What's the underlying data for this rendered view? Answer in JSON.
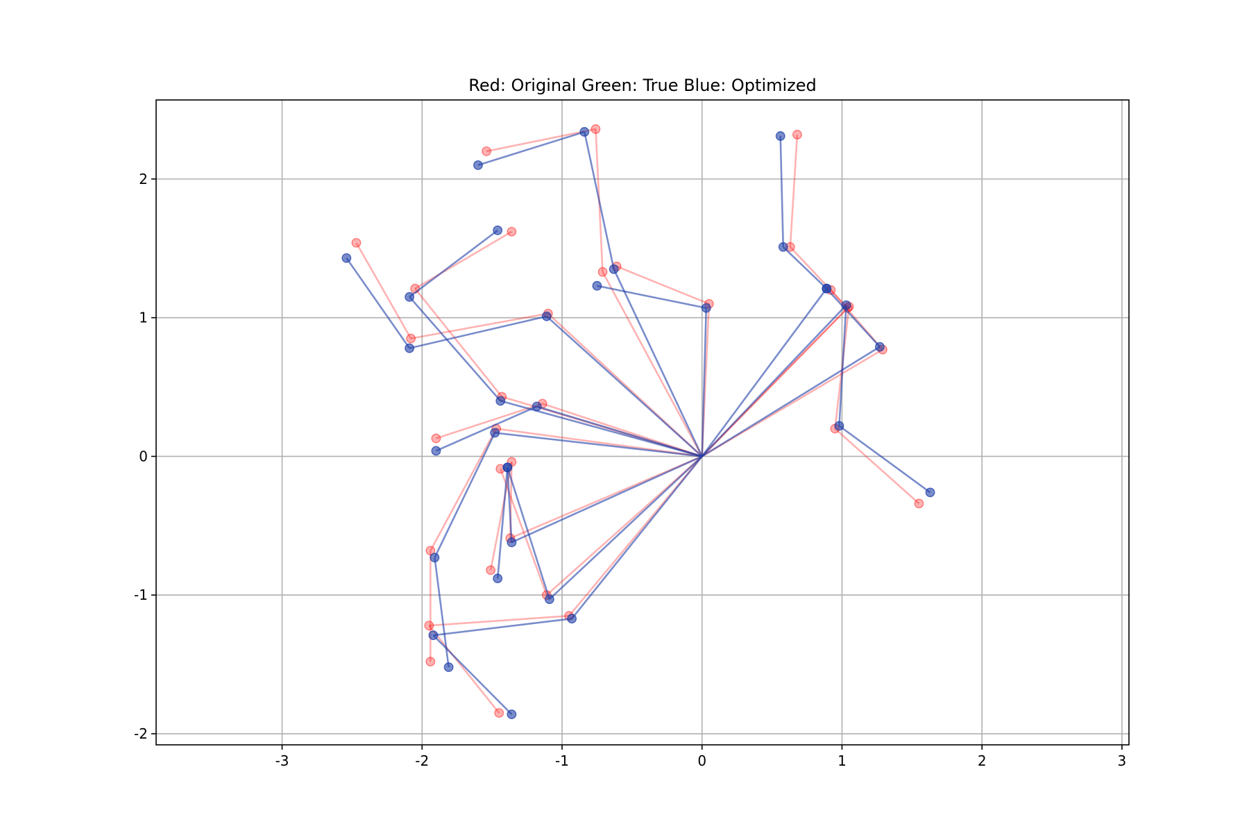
{
  "chart_data": {
    "type": "line",
    "title": "Red: Original  Green: True  Blue: Optimized",
    "xlabel": "",
    "ylabel": "",
    "xlim": [
      -3.9,
      3.05
    ],
    "ylim": [
      -2.08,
      2.57
    ],
    "xticks": [
      -3,
      -2,
      -1,
      0,
      1,
      2,
      3
    ],
    "yticks": [
      -2,
      -1,
      0,
      1,
      2
    ],
    "grid": true,
    "colors": {
      "original": "#ff0000",
      "optimized": "#1f3fa8"
    },
    "series": [
      {
        "name": "Original",
        "color": "#ff0000",
        "alpha": 0.3,
        "tree": [
          [
            [
              0,
              0
            ],
            [
              -1.1,
              1.03
            ],
            [
              -2.08,
              0.85
            ],
            [
              -2.47,
              1.54
            ]
          ],
          [
            [
              0,
              0
            ],
            [
              -0.71,
              1.33
            ],
            [
              -0.76,
              2.36
            ],
            [
              -1.54,
              2.2
            ]
          ],
          [
            [
              0,
              0
            ],
            [
              -1.43,
              0.43
            ],
            [
              -2.05,
              1.21
            ],
            [
              -1.36,
              1.62
            ]
          ],
          [
            [
              0,
              0
            ],
            [
              -1.14,
              0.38
            ],
            [
              -1.9,
              0.13
            ]
          ],
          [
            [
              0,
              0
            ],
            [
              -1.47,
              0.2
            ],
            [
              -1.94,
              -0.68
            ],
            [
              -1.94,
              -1.48
            ]
          ],
          [
            [
              0,
              0
            ],
            [
              -1.37,
              -0.59
            ],
            [
              -1.36,
              -0.04
            ],
            [
              -1.51,
              -0.82
            ]
          ],
          [
            [
              0,
              0
            ],
            [
              -1.11,
              -1.0
            ],
            [
              -1.44,
              -0.09
            ]
          ],
          [
            [
              0,
              0
            ],
            [
              -0.95,
              -1.15
            ],
            [
              -1.95,
              -1.22
            ],
            [
              -1.45,
              -1.85
            ]
          ],
          [
            [
              0,
              0
            ],
            [
              0.05,
              1.1
            ],
            [
              -0.61,
              1.37
            ]
          ],
          [
            [
              0,
              0
            ],
            [
              1.04,
              1.07
            ],
            [
              0.63,
              1.51
            ],
            [
              0.68,
              2.32
            ]
          ],
          [
            [
              0,
              0
            ],
            [
              1.29,
              0.77
            ],
            [
              0.92,
              1.2
            ]
          ],
          [
            [
              0,
              0
            ],
            [
              1.05,
              1.08
            ],
            [
              0.95,
              0.2
            ],
            [
              1.55,
              -0.34
            ]
          ]
        ]
      },
      {
        "name": "Optimized",
        "color": "#1f3fa8",
        "alpha": 0.6,
        "tree": [
          [
            [
              0,
              0
            ],
            [
              -1.11,
              1.01
            ],
            [
              -2.09,
              0.78
            ],
            [
              -2.54,
              1.43
            ]
          ],
          [
            [
              0,
              0
            ],
            [
              -0.63,
              1.35
            ],
            [
              -0.84,
              2.34
            ],
            [
              -1.6,
              2.1
            ]
          ],
          [
            [
              0,
              0
            ],
            [
              -1.44,
              0.4
            ],
            [
              -2.09,
              1.15
            ],
            [
              -1.46,
              1.63
            ]
          ],
          [
            [
              0,
              0
            ],
            [
              -1.18,
              0.36
            ],
            [
              -1.9,
              0.04
            ]
          ],
          [
            [
              0,
              0
            ],
            [
              -1.48,
              0.17
            ],
            [
              -1.91,
              -0.73
            ],
            [
              -1.81,
              -1.52
            ]
          ],
          [
            [
              0,
              0
            ],
            [
              -1.36,
              -0.62
            ],
            [
              -1.39,
              -0.08
            ],
            [
              -1.46,
              -0.88
            ]
          ],
          [
            [
              0,
              0
            ],
            [
              -1.09,
              -1.03
            ],
            [
              -1.39,
              -0.08
            ]
          ],
          [
            [
              0,
              0
            ],
            [
              -0.93,
              -1.17
            ],
            [
              -1.92,
              -1.29
            ],
            [
              -1.36,
              -1.86
            ]
          ],
          [
            [
              0,
              0
            ],
            [
              0.03,
              1.07
            ],
            [
              -0.75,
              1.23
            ]
          ],
          [
            [
              0,
              0
            ],
            [
              0.89,
              1.21
            ],
            [
              0.58,
              1.51
            ],
            [
              0.56,
              2.31
            ]
          ],
          [
            [
              0,
              0
            ],
            [
              1.27,
              0.79
            ],
            [
              0.89,
              1.21
            ]
          ],
          [
            [
              0,
              0
            ],
            [
              1.03,
              1.09
            ],
            [
              0.98,
              0.22
            ],
            [
              1.63,
              -0.26
            ]
          ]
        ]
      }
    ]
  }
}
